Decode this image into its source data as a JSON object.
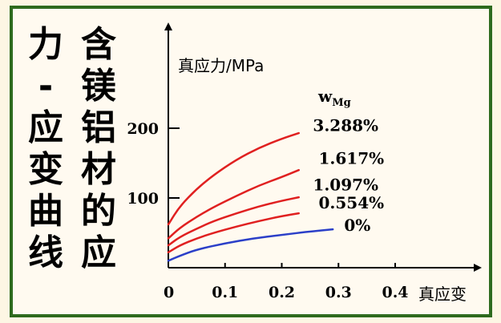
{
  "title_columns": [
    [
      "含",
      "镁",
      "铝",
      "材",
      "的",
      "应"
    ],
    [
      "力",
      "-",
      "应",
      "变",
      "曲",
      "线"
    ]
  ],
  "colors": {
    "frame": "#2e6b1e",
    "background": "#fffaf0",
    "curve_red": "#e02020",
    "curve_blue": "#2b3fc8"
  },
  "chart_data": {
    "type": "line",
    "title": "",
    "xlabel": "真应变",
    "ylabel": "真应力/MPa",
    "xlim": [
      0,
      0.5
    ],
    "ylim": [
      0,
      250
    ],
    "x_ticks": [
      "0",
      "0.1",
      "0.2",
      "0.3",
      "0.4"
    ],
    "x_tick_values": [
      0,
      0.1,
      0.2,
      0.3,
      0.4
    ],
    "y_ticks": [
      "100",
      "200"
    ],
    "y_tick_values": [
      100,
      200
    ],
    "legend_title": "wMg",
    "legend_title_main": "w",
    "legend_title_sub": "Mg",
    "series": [
      {
        "name": "3.288%",
        "color": "#e02020",
        "x": [
          0,
          0.02,
          0.05,
          0.08,
          0.12,
          0.16,
          0.2,
          0.23
        ],
        "y": [
          62,
          88,
          113,
          133,
          155,
          172,
          185,
          193
        ]
      },
      {
        "name": "1.617%",
        "color": "#e02020",
        "x": [
          0,
          0.02,
          0.05,
          0.08,
          0.12,
          0.16,
          0.2,
          0.23
        ],
        "y": [
          42,
          57,
          73,
          87,
          103,
          118,
          130,
          140
        ]
      },
      {
        "name": "1.097%",
        "color": "#e02020",
        "x": [
          0,
          0.02,
          0.05,
          0.08,
          0.12,
          0.16,
          0.2,
          0.23
        ],
        "y": [
          32,
          44,
          56,
          67,
          78,
          88,
          96,
          101
        ]
      },
      {
        "name": "0.554%",
        "color": "#e02020",
        "x": [
          0,
          0.02,
          0.05,
          0.08,
          0.12,
          0.16,
          0.2,
          0.23
        ],
        "y": [
          22,
          32,
          42,
          50,
          59,
          67,
          74,
          78
        ]
      },
      {
        "name": "0%",
        "color": "#2b3fc8",
        "x": [
          0,
          0.02,
          0.05,
          0.1,
          0.15,
          0.2,
          0.25,
          0.29
        ],
        "y": [
          10,
          17,
          26,
          35,
          42,
          47,
          52,
          55
        ]
      }
    ],
    "series_label_positions": [
      {
        "x": 0.255,
        "y": 196
      },
      {
        "x": 0.265,
        "y": 149
      },
      {
        "x": 0.255,
        "y": 111
      },
      {
        "x": 0.265,
        "y": 85
      },
      {
        "x": 0.31,
        "y": 53
      }
    ]
  }
}
